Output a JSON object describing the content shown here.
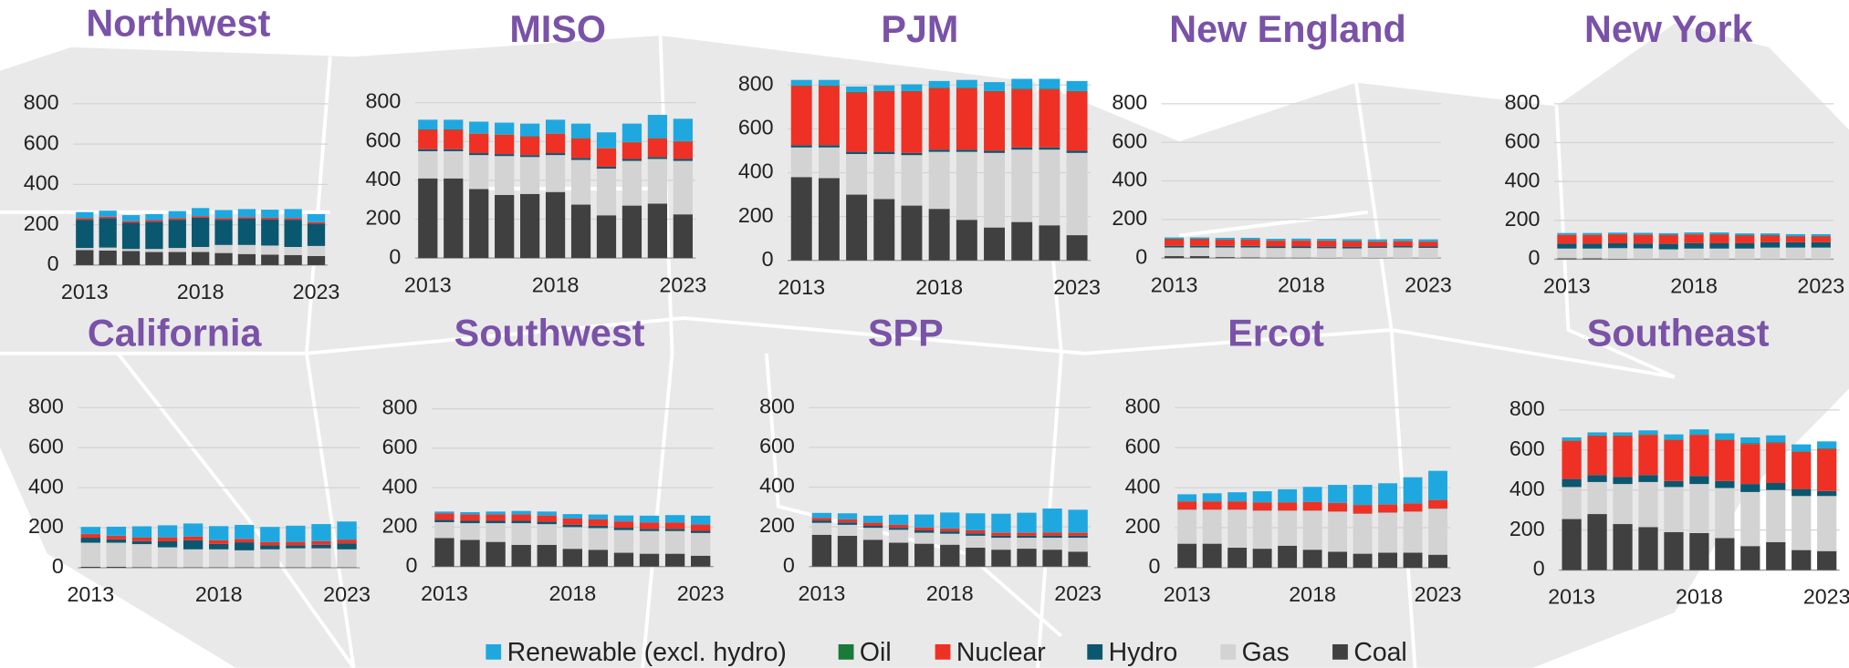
{
  "legend": [
    {
      "name": "Renewable (excl. hydro)",
      "color": "#1fa8e0"
    },
    {
      "name": "Oil",
      "color": "#1a7a3a"
    },
    {
      "name": "Nuclear",
      "color": "#ee3124"
    },
    {
      "name": "Hydro",
      "color": "#0a5770"
    },
    {
      "name": "Gas",
      "color": "#d3d3d3"
    },
    {
      "name": "Coal",
      "color": "#404040"
    }
  ],
  "chart_data": [
    {
      "type": "bar",
      "stacked": true,
      "title": "Northwest",
      "categories": [
        "2013",
        null,
        null,
        null,
        null,
        "2018",
        null,
        null,
        null,
        null,
        "2023"
      ],
      "ylim": [
        0,
        900
      ],
      "yticks": [
        0,
        200,
        400,
        600,
        800
      ],
      "grid": true,
      "series": [
        {
          "values": [
            30,
            30,
            30,
            30,
            35,
            40,
            40,
            40,
            40,
            45,
            40
          ]
        },
        {
          "values": [
            0,
            0,
            0,
            0,
            0,
            0,
            0,
            0,
            0,
            0,
            0
          ]
        },
        {
          "values": [
            8,
            8,
            8,
            8,
            8,
            8,
            8,
            8,
            8,
            8,
            8
          ]
        },
        {
          "values": [
            140,
            145,
            130,
            135,
            140,
            145,
            125,
            130,
            130,
            135,
            110
          ]
        },
        {
          "values": [
            10,
            15,
            10,
            15,
            20,
            25,
            40,
            45,
            45,
            40,
            50
          ]
        },
        {
          "values": [
            75,
            72,
            70,
            65,
            65,
            65,
            60,
            55,
            52,
            50,
            45
          ]
        }
      ]
    },
    {
      "type": "bar",
      "stacked": true,
      "title": "MISO",
      "categories": [
        "2013",
        null,
        null,
        null,
        null,
        "2018",
        null,
        null,
        null,
        null,
        "2023"
      ],
      "ylim": [
        0,
        900
      ],
      "yticks": [
        0,
        200,
        400,
        600,
        800
      ],
      "grid": true,
      "series": [
        {
          "values": [
            50,
            50,
            60,
            60,
            65,
            70,
            75,
            80,
            95,
            120,
            115
          ]
        },
        {
          "values": [
            2,
            2,
            2,
            2,
            2,
            2,
            2,
            2,
            2,
            2,
            2
          ]
        },
        {
          "values": [
            100,
            100,
            100,
            100,
            95,
            100,
            100,
            95,
            85,
            95,
            90
          ]
        },
        {
          "values": [
            10,
            10,
            10,
            10,
            10,
            10,
            10,
            10,
            10,
            10,
            10
          ]
        },
        {
          "values": [
            140,
            140,
            175,
            200,
            190,
            190,
            230,
            240,
            230,
            230,
            275
          ]
        },
        {
          "values": [
            410,
            410,
            355,
            325,
            330,
            340,
            275,
            220,
            270,
            280,
            225
          ]
        }
      ]
    },
    {
      "type": "bar",
      "stacked": true,
      "title": "PJM",
      "categories": [
        "2013",
        null,
        null,
        null,
        null,
        "2018",
        null,
        null,
        null,
        null,
        "2023"
      ],
      "ylim": [
        0,
        900
      ],
      "yticks": [
        0,
        200,
        400,
        600,
        800
      ],
      "grid": true,
      "series": [
        {
          "values": [
            25,
            25,
            25,
            25,
            30,
            30,
            35,
            40,
            45,
            45,
            45
          ]
        },
        {
          "values": [
            3,
            3,
            3,
            3,
            3,
            3,
            3,
            3,
            3,
            3,
            3
          ]
        },
        {
          "values": [
            270,
            270,
            270,
            275,
            280,
            280,
            280,
            270,
            265,
            265,
            270
          ]
        },
        {
          "values": [
            10,
            10,
            10,
            10,
            10,
            10,
            10,
            10,
            10,
            10,
            10
          ]
        },
        {
          "values": [
            135,
            140,
            185,
            205,
            230,
            260,
            310,
            340,
            330,
            345,
            375
          ]
        },
        {
          "values": [
            380,
            375,
            300,
            280,
            250,
            235,
            185,
            150,
            175,
            160,
            115
          ]
        }
      ]
    },
    {
      "type": "bar",
      "stacked": true,
      "title": "New England",
      "categories": [
        "2013",
        null,
        null,
        null,
        null,
        "2018",
        null,
        null,
        null,
        null,
        "2023"
      ],
      "ylim": [
        0,
        900
      ],
      "yticks": [
        0,
        200,
        400,
        600,
        800
      ],
      "grid": true,
      "series": [
        {
          "values": [
            7,
            7,
            8,
            8,
            8,
            9,
            9,
            10,
            10,
            10,
            10
          ]
        },
        {
          "values": [
            2,
            2,
            2,
            2,
            2,
            2,
            2,
            2,
            2,
            2,
            2
          ]
        },
        {
          "values": [
            35,
            35,
            32,
            32,
            30,
            30,
            30,
            28,
            25,
            25,
            25
          ]
        },
        {
          "values": [
            8,
            8,
            8,
            8,
            8,
            8,
            8,
            8,
            7,
            7,
            7
          ]
        },
        {
          "values": [
            45,
            45,
            50,
            52,
            50,
            50,
            50,
            50,
            52,
            55,
            53
          ]
        },
        {
          "values": [
            10,
            10,
            5,
            3,
            2,
            2,
            1,
            0,
            1,
            0,
            0
          ]
        }
      ]
    },
    {
      "type": "bar",
      "stacked": true,
      "title": "New York",
      "categories": [
        "2013",
        null,
        null,
        null,
        null,
        "2018",
        null,
        null,
        null,
        null,
        "2023"
      ],
      "ylim": [
        0,
        900
      ],
      "yticks": [
        0,
        200,
        400,
        600,
        800
      ],
      "grid": true,
      "series": [
        {
          "values": [
            8,
            8,
            8,
            8,
            8,
            8,
            9,
            9,
            9,
            10,
            10
          ]
        },
        {
          "values": [
            2,
            2,
            2,
            2,
            2,
            2,
            2,
            2,
            2,
            2,
            2
          ]
        },
        {
          "values": [
            45,
            45,
            45,
            45,
            45,
            45,
            45,
            40,
            35,
            30,
            30
          ]
        },
        {
          "values": [
            25,
            25,
            25,
            25,
            28,
            28,
            27,
            27,
            27,
            27,
            27
          ]
        },
        {
          "values": [
            50,
            50,
            55,
            55,
            50,
            55,
            55,
            55,
            60,
            60,
            60
          ]
        },
        {
          "values": [
            5,
            5,
            2,
            1,
            1,
            0,
            0,
            0,
            0,
            0,
            0
          ]
        }
      ]
    },
    {
      "type": "bar",
      "stacked": true,
      "title": "California",
      "categories": [
        "2013",
        null,
        null,
        null,
        null,
        "2018",
        null,
        null,
        null,
        null,
        "2023"
      ],
      "ylim": [
        0,
        900
      ],
      "yticks": [
        0,
        200,
        400,
        600,
        800
      ],
      "grid": true,
      "series": [
        {
          "values": [
            35,
            45,
            55,
            60,
            65,
            70,
            70,
            75,
            80,
            85,
            90
          ]
        },
        {
          "values": [
            1,
            1,
            1,
            1,
            1,
            1,
            1,
            1,
            1,
            1,
            1
          ]
        },
        {
          "values": [
            18,
            17,
            18,
            19,
            18,
            18,
            16,
            16,
            17,
            17,
            18
          ]
        },
        {
          "values": [
            25,
            17,
            15,
            30,
            45,
            27,
            40,
            20,
            15,
            18,
            30
          ]
        },
        {
          "values": [
            120,
            120,
            115,
            100,
            90,
            90,
            85,
            90,
            95,
            95,
            90
          ]
        },
        {
          "values": [
            5,
            5,
            3,
            2,
            2,
            2,
            2,
            2,
            2,
            2,
            2
          ]
        }
      ]
    },
    {
      "type": "bar",
      "stacked": true,
      "title": "Southwest",
      "categories": [
        "2013",
        null,
        null,
        null,
        null,
        "2018",
        null,
        null,
        null,
        null,
        "2023"
      ],
      "ylim": [
        0,
        900
      ],
      "yticks": [
        0,
        200,
        400,
        600,
        800
      ],
      "grid": true,
      "series": [
        {
          "values": [
            10,
            12,
            15,
            18,
            20,
            22,
            25,
            30,
            35,
            38,
            45
          ]
        },
        {
          "values": [
            0,
            0,
            0,
            0,
            0,
            0,
            0,
            0,
            0,
            0,
            0
          ]
        },
        {
          "values": [
            32,
            32,
            32,
            32,
            32,
            32,
            32,
            32,
            32,
            32,
            32
          ]
        },
        {
          "values": [
            12,
            12,
            12,
            12,
            12,
            12,
            12,
            12,
            11,
            11,
            11
          ]
        },
        {
          "values": [
            80,
            85,
            95,
            110,
            105,
            110,
            110,
            115,
            115,
            115,
            115
          ]
        },
        {
          "values": [
            145,
            135,
            125,
            110,
            110,
            90,
            85,
            70,
            65,
            65,
            55
          ]
        }
      ]
    },
    {
      "type": "bar",
      "stacked": true,
      "title": "SPP",
      "categories": [
        "2013",
        null,
        null,
        null,
        null,
        "2018",
        null,
        null,
        null,
        null,
        "2023"
      ],
      "ylim": [
        0,
        900
      ],
      "yticks": [
        0,
        200,
        400,
        600,
        800
      ],
      "grid": true,
      "series": [
        {
          "values": [
            25,
            30,
            35,
            50,
            65,
            80,
            85,
            95,
            100,
            120,
            115
          ]
        },
        {
          "values": [
            1,
            1,
            1,
            1,
            1,
            1,
            1,
            1,
            1,
            1,
            1
          ]
        },
        {
          "values": [
            12,
            15,
            15,
            15,
            14,
            14,
            15,
            15,
            15,
            15,
            15
          ]
        },
        {
          "values": [
            12,
            12,
            10,
            10,
            12,
            12,
            12,
            10,
            10,
            11,
            10
          ]
        },
        {
          "values": [
            60,
            55,
            60,
            65,
            55,
            55,
            60,
            60,
            55,
            60,
            70
          ]
        },
        {
          "values": [
            160,
            155,
            135,
            120,
            115,
            110,
            95,
            85,
            90,
            85,
            75
          ]
        }
      ]
    },
    {
      "type": "bar",
      "stacked": true,
      "title": "Ercot",
      "categories": [
        "2013",
        null,
        null,
        null,
        null,
        "2018",
        null,
        null,
        null,
        null,
        "2023"
      ],
      "ylim": [
        0,
        900
      ],
      "yticks": [
        0,
        200,
        400,
        600,
        800
      ],
      "grid": true,
      "series": [
        {
          "values": [
            35,
            40,
            45,
            55,
            65,
            75,
            90,
            100,
            105,
            130,
            145
          ]
        },
        {
          "values": [
            1,
            1,
            1,
            1,
            1,
            1,
            1,
            1,
            1,
            1,
            1
          ]
        },
        {
          "values": [
            40,
            40,
            40,
            40,
            40,
            42,
            42,
            42,
            40,
            40,
            42
          ]
        },
        {
          "values": [
            1,
            1,
            1,
            1,
            1,
            1,
            1,
            1,
            1,
            1,
            1
          ]
        },
        {
          "values": [
            170,
            170,
            190,
            190,
            175,
            195,
            200,
            200,
            200,
            205,
            230
          ]
        },
        {
          "values": [
            120,
            120,
            100,
            95,
            110,
            90,
            80,
            70,
            75,
            75,
            65
          ]
        }
      ]
    },
    {
      "type": "bar",
      "stacked": true,
      "title": "Southeast",
      "categories": [
        "2013",
        null,
        null,
        null,
        null,
        "2018",
        null,
        null,
        null,
        null,
        "2023"
      ],
      "ylim": [
        0,
        900
      ],
      "yticks": [
        0,
        200,
        400,
        600,
        800
      ],
      "grid": true,
      "series": [
        {
          "values": [
            15,
            15,
            15,
            20,
            25,
            25,
            30,
            30,
            35,
            35,
            35
          ]
        },
        {
          "values": [
            3,
            3,
            3,
            3,
            3,
            3,
            3,
            3,
            3,
            3,
            3
          ]
        },
        {
          "values": [
            190,
            195,
            205,
            200,
            205,
            205,
            205,
            200,
            200,
            185,
            210
          ]
        },
        {
          "values": [
            40,
            35,
            35,
            35,
            30,
            40,
            35,
            40,
            35,
            35,
            25
          ]
        },
        {
          "values": [
            160,
            160,
            200,
            225,
            225,
            245,
            250,
            270,
            260,
            270,
            275
          ]
        },
        {
          "values": [
            255,
            280,
            230,
            215,
            190,
            185,
            160,
            120,
            140,
            100,
            95
          ]
        }
      ]
    }
  ]
}
